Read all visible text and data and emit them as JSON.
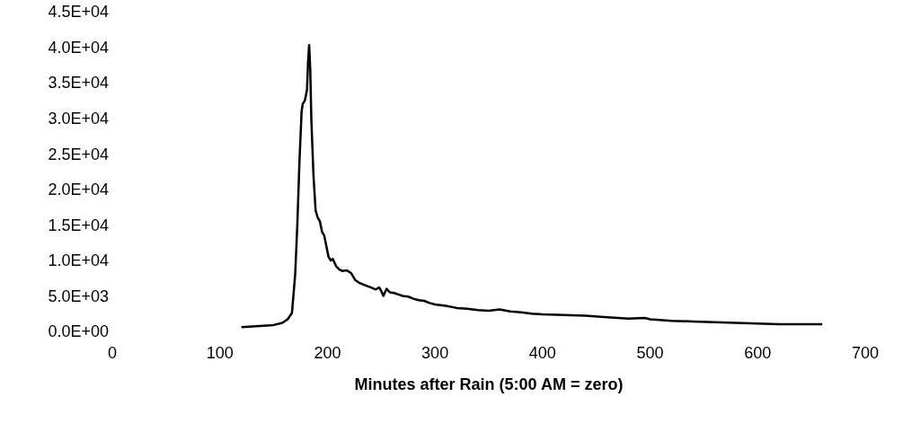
{
  "chart_data": {
    "type": "line",
    "xlabel": "Minutes after Rain (5:00 AM = zero)",
    "xlim": [
      0,
      700
    ],
    "xticks": [
      0,
      100,
      200,
      300,
      400,
      500,
      600,
      700
    ],
    "ylim": [
      0,
      45000
    ],
    "yticks": [
      {
        "value": 0,
        "label": "0.0E+00"
      },
      {
        "value": 5000,
        "label": "5.0E+03"
      },
      {
        "value": 10000,
        "label": "1.0E+04"
      },
      {
        "value": 15000,
        "label": "1.5E+04"
      },
      {
        "value": 20000,
        "label": "2.0E+04"
      },
      {
        "value": 25000,
        "label": "2.5E+04"
      },
      {
        "value": 30000,
        "label": "3.0E+04"
      },
      {
        "value": 35000,
        "label": "3.5E+04"
      },
      {
        "value": 40000,
        "label": "4.0E+04"
      },
      {
        "value": 45000,
        "label": "4.5E+04"
      }
    ],
    "marker": "none",
    "line_style": "solid",
    "series": [
      {
        "color": "#000000",
        "x": [
          120,
          130,
          140,
          150,
          158,
          163,
          167,
          170,
          172,
          174,
          176,
          177,
          179,
          181,
          182,
          183,
          184,
          185,
          187,
          189,
          191,
          193,
          195,
          197,
          199,
          201,
          203,
          205,
          208,
          211,
          214,
          218,
          222,
          226,
          230,
          235,
          240,
          245,
          248,
          250,
          252,
          255,
          258,
          262,
          266,
          270,
          275,
          280,
          285,
          290,
          295,
          300,
          310,
          320,
          330,
          340,
          350,
          360,
          370,
          380,
          390,
          400,
          420,
          440,
          460,
          480,
          495,
          500,
          520,
          540,
          560,
          580,
          600,
          620,
          640,
          660
        ],
        "values": [
          600,
          700,
          800,
          900,
          1200,
          1700,
          2600,
          8000,
          15000,
          24000,
          31000,
          32000,
          32500,
          34000,
          38000,
          40300,
          37000,
          30000,
          22000,
          17000,
          16000,
          15500,
          14000,
          13500,
          12000,
          10500,
          10000,
          10200,
          9200,
          8700,
          8500,
          8600,
          8200,
          7200,
          6800,
          6500,
          6200,
          5900,
          6200,
          5700,
          5000,
          6000,
          5500,
          5400,
          5200,
          5000,
          4900,
          4600,
          4400,
          4300,
          4000,
          3800,
          3600,
          3300,
          3200,
          3000,
          2900,
          3100,
          2800,
          2700,
          2500,
          2400,
          2300,
          2200,
          2000,
          1800,
          1900,
          1700,
          1500,
          1400,
          1300,
          1200,
          1100,
          1000,
          1000,
          1000
        ]
      }
    ]
  }
}
